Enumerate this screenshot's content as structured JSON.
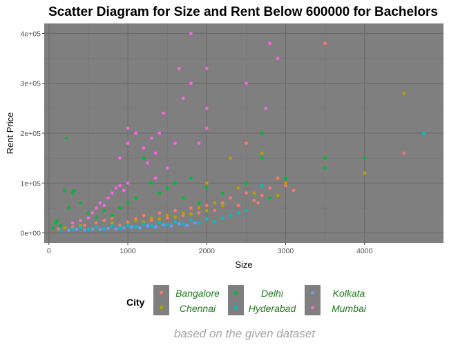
{
  "chart_data": {
    "type": "scatter",
    "title": "Scatter Diagram for Size and Rent Below 600000 for Bachelors",
    "xlabel": "Size",
    "ylabel": "Rent Price",
    "xlim": [
      -60,
      5000
    ],
    "ylim": [
      -20000,
      420000
    ],
    "x_ticks": [
      0,
      1000,
      2000,
      3000,
      4000
    ],
    "x_tick_labels": [
      "0",
      "1000",
      "2000",
      "3000",
      "4000"
    ],
    "y_ticks": [
      0,
      100000,
      200000,
      300000,
      400000
    ],
    "y_tick_labels": [
      "0e+00",
      "1e+05",
      "2e+05",
      "3e+05",
      "4e+05"
    ],
    "grid": true,
    "panel_background": "#7f7f7f",
    "legend": {
      "title": "City",
      "position": "bottom",
      "entries": [
        "Bangalore",
        "Chennai",
        "Delhi",
        "Hyderabad",
        "Kolkata",
        "Mumbai"
      ]
    },
    "caption": "based on the given dataset",
    "series": [
      {
        "name": "Bangalore",
        "color": "#F8766D",
        "points": [
          [
            120,
            8000
          ],
          [
            300,
            12000
          ],
          [
            450,
            15000
          ],
          [
            600,
            20000
          ],
          [
            700,
            25000
          ],
          [
            800,
            30000
          ],
          [
            900,
            15000
          ],
          [
            1000,
            22000
          ],
          [
            1100,
            28000
          ],
          [
            1200,
            35000
          ],
          [
            1300,
            25000
          ],
          [
            1400,
            40000
          ],
          [
            1500,
            30000
          ],
          [
            1600,
            45000
          ],
          [
            1700,
            35000
          ],
          [
            1800,
            50000
          ],
          [
            1900,
            40000
          ],
          [
            2000,
            55000
          ],
          [
            2100,
            45000
          ],
          [
            2200,
            60000
          ],
          [
            2300,
            70000
          ],
          [
            2400,
            55000
          ],
          [
            2500,
            80000
          ],
          [
            2600,
            65000
          ],
          [
            2700,
            75000
          ],
          [
            2800,
            90000
          ],
          [
            2900,
            110000
          ],
          [
            3000,
            95000
          ],
          [
            3100,
            85000
          ],
          [
            3500,
            380000
          ],
          [
            2500,
            180000
          ],
          [
            4500,
            160000
          ],
          [
            2650,
            60000
          ]
        ]
      },
      {
        "name": "Chennai",
        "color": "#B79F00",
        "points": [
          [
            200,
            10000
          ],
          [
            400,
            15000
          ],
          [
            600,
            12000
          ],
          [
            800,
            20000
          ],
          [
            1000,
            18000
          ],
          [
            1100,
            25000
          ],
          [
            1200,
            22000
          ],
          [
            1300,
            30000
          ],
          [
            1400,
            28000
          ],
          [
            1500,
            35000
          ],
          [
            1600,
            32000
          ],
          [
            1700,
            40000
          ],
          [
            1800,
            38000
          ],
          [
            1900,
            50000
          ],
          [
            2000,
            45000
          ],
          [
            2100,
            60000
          ],
          [
            2200,
            55000
          ],
          [
            2300,
            150000
          ],
          [
            2400,
            90000
          ],
          [
            2600,
            80000
          ],
          [
            2700,
            160000
          ],
          [
            2800,
            70000
          ],
          [
            2900,
            75000
          ],
          [
            3000,
            100000
          ],
          [
            4000,
            120000
          ],
          [
            4500,
            280000
          ],
          [
            2000,
            100000
          ]
        ]
      },
      {
        "name": "Delhi",
        "color": "#00BA38",
        "points": [
          [
            50,
            10000
          ],
          [
            80,
            20000
          ],
          [
            100,
            25000
          ],
          [
            150,
            15000
          ],
          [
            200,
            85000
          ],
          [
            220,
            190000
          ],
          [
            300,
            80000
          ],
          [
            320,
            85000
          ],
          [
            400,
            60000
          ],
          [
            250,
            50000
          ],
          [
            500,
            40000
          ],
          [
            600,
            30000
          ],
          [
            700,
            45000
          ],
          [
            800,
            35000
          ],
          [
            900,
            50000
          ],
          [
            1000,
            60000
          ],
          [
            1100,
            70000
          ],
          [
            1200,
            150000
          ],
          [
            1300,
            100000
          ],
          [
            1400,
            80000
          ],
          [
            1500,
            90000
          ],
          [
            1600,
            100000
          ],
          [
            1700,
            70000
          ],
          [
            1800,
            110000
          ],
          [
            1900,
            60000
          ],
          [
            2000,
            90000
          ],
          [
            2200,
            80000
          ],
          [
            2500,
            100000
          ],
          [
            2700,
            150000
          ],
          [
            2700,
            200000
          ],
          [
            3000,
            110000
          ],
          [
            3500,
            130000
          ],
          [
            3500,
            150000
          ],
          [
            4000,
            150000
          ],
          [
            2800,
            70000
          ]
        ]
      },
      {
        "name": "Hyderabad",
        "color": "#00BFC4",
        "points": [
          [
            150,
            5000
          ],
          [
            300,
            8000
          ],
          [
            400,
            10000
          ],
          [
            500,
            6000
          ],
          [
            600,
            12000
          ],
          [
            700,
            8000
          ],
          [
            800,
            14000
          ],
          [
            900,
            10000
          ],
          [
            1000,
            15000
          ],
          [
            1100,
            12000
          ],
          [
            1200,
            18000
          ],
          [
            1300,
            14000
          ],
          [
            1400,
            20000
          ],
          [
            1500,
            16000
          ],
          [
            1600,
            22000
          ],
          [
            1700,
            18000
          ],
          [
            1800,
            25000
          ],
          [
            1900,
            20000
          ],
          [
            2000,
            28000
          ],
          [
            2100,
            22000
          ],
          [
            2200,
            30000
          ],
          [
            2300,
            35000
          ],
          [
            2400,
            40000
          ],
          [
            2500,
            45000
          ],
          [
            2700,
            95000
          ],
          [
            4750,
            200000
          ]
        ]
      },
      {
        "name": "Kolkata",
        "color": "#619CFF",
        "points": [
          [
            250,
            5000
          ],
          [
            350,
            7000
          ],
          [
            450,
            6000
          ],
          [
            550,
            8000
          ],
          [
            650,
            7000
          ],
          [
            750,
            9000
          ],
          [
            850,
            8000
          ],
          [
            950,
            10000
          ],
          [
            1050,
            12000
          ],
          [
            1150,
            10000
          ],
          [
            1250,
            14000
          ],
          [
            1350,
            12000
          ],
          [
            1450,
            16000
          ],
          [
            1550,
            14000
          ],
          [
            1650,
            18000
          ],
          [
            1750,
            15000
          ],
          [
            1850,
            20000
          ]
        ]
      },
      {
        "name": "Mumbai",
        "color": "#F564E3",
        "points": [
          [
            300,
            20000
          ],
          [
            400,
            25000
          ],
          [
            500,
            30000
          ],
          [
            550,
            40000
          ],
          [
            600,
            50000
          ],
          [
            650,
            60000
          ],
          [
            700,
            55000
          ],
          [
            750,
            70000
          ],
          [
            800,
            80000
          ],
          [
            850,
            90000
          ],
          [
            900,
            95000
          ],
          [
            950,
            85000
          ],
          [
            1000,
            100000
          ],
          [
            1000,
            180000
          ],
          [
            1000,
            210000
          ],
          [
            1100,
            200000
          ],
          [
            1200,
            170000
          ],
          [
            1250,
            140000
          ],
          [
            1300,
            190000
          ],
          [
            1350,
            160000
          ],
          [
            1400,
            200000
          ],
          [
            1500,
            130000
          ],
          [
            1600,
            180000
          ],
          [
            1650,
            330000
          ],
          [
            1700,
            270000
          ],
          [
            1800,
            300000
          ],
          [
            1800,
            400000
          ],
          [
            1900,
            180000
          ],
          [
            2000,
            330000
          ],
          [
            2000,
            250000
          ],
          [
            2000,
            210000
          ],
          [
            2500,
            300000
          ],
          [
            2750,
            250000
          ],
          [
            2800,
            380000
          ],
          [
            2900,
            350000
          ],
          [
            900,
            150000
          ],
          [
            1450,
            240000
          ],
          [
            1350,
            110000
          ]
        ]
      }
    ]
  }
}
